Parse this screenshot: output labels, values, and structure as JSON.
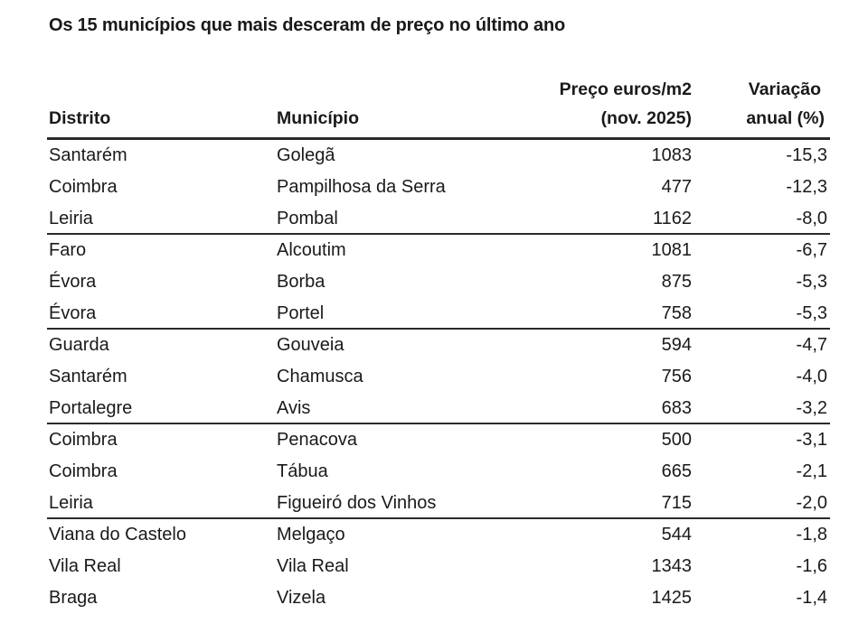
{
  "title": "Os 15 municípios que mais desceram de preço no último ano",
  "table": {
    "headers": {
      "distrito": "Distrito",
      "municipio": "Município",
      "preco_line1": "Preço euros/m2",
      "preco_line2": "(nov. 2025)",
      "variacao_line1": "Variação",
      "variacao_line2": "anual (%)"
    },
    "rows": [
      {
        "distrito": "Santarém",
        "municipio": "Golegã",
        "preco": "1083",
        "variacao": "-15,3"
      },
      {
        "distrito": "Coimbra",
        "municipio": "Pampilhosa da Serra",
        "preco": "477",
        "variacao": "-12,3"
      },
      {
        "distrito": "Leiria",
        "municipio": "Pombal",
        "preco": "1162",
        "variacao": "-8,0"
      },
      {
        "distrito": "Faro",
        "municipio": "Alcoutim",
        "preco": "1081",
        "variacao": "-6,7"
      },
      {
        "distrito": "Évora",
        "municipio": "Borba",
        "preco": "875",
        "variacao": "-5,3"
      },
      {
        "distrito": "Évora",
        "municipio": "Portel",
        "preco": "758",
        "variacao": "-5,3"
      },
      {
        "distrito": "Guarda",
        "municipio": "Gouveia",
        "preco": "594",
        "variacao": "-4,7"
      },
      {
        "distrito": "Santarém",
        "municipio": "Chamusca",
        "preco": "756",
        "variacao": "-4,0"
      },
      {
        "distrito": "Portalegre",
        "municipio": "Avis",
        "preco": "683",
        "variacao": "-3,2"
      },
      {
        "distrito": "Coimbra",
        "municipio": "Penacova",
        "preco": "500",
        "variacao": "-3,1"
      },
      {
        "distrito": "Coimbra",
        "municipio": "Tábua",
        "preco": "665",
        "variacao": "-2,1"
      },
      {
        "distrito": "Leiria",
        "municipio": "Figueiró dos Vinhos",
        "preco": "715",
        "variacao": "-2,0"
      },
      {
        "distrito": "Viana do Castelo",
        "municipio": "Melgaço",
        "preco": "544",
        "variacao": "-1,8"
      },
      {
        "distrito": "Vila Real",
        "municipio": "Vila Real",
        "preco": "1343",
        "variacao": "-1,6"
      },
      {
        "distrito": "Braga",
        "municipio": "Vizela",
        "preco": "1425",
        "variacao": "-1,4"
      }
    ]
  }
}
